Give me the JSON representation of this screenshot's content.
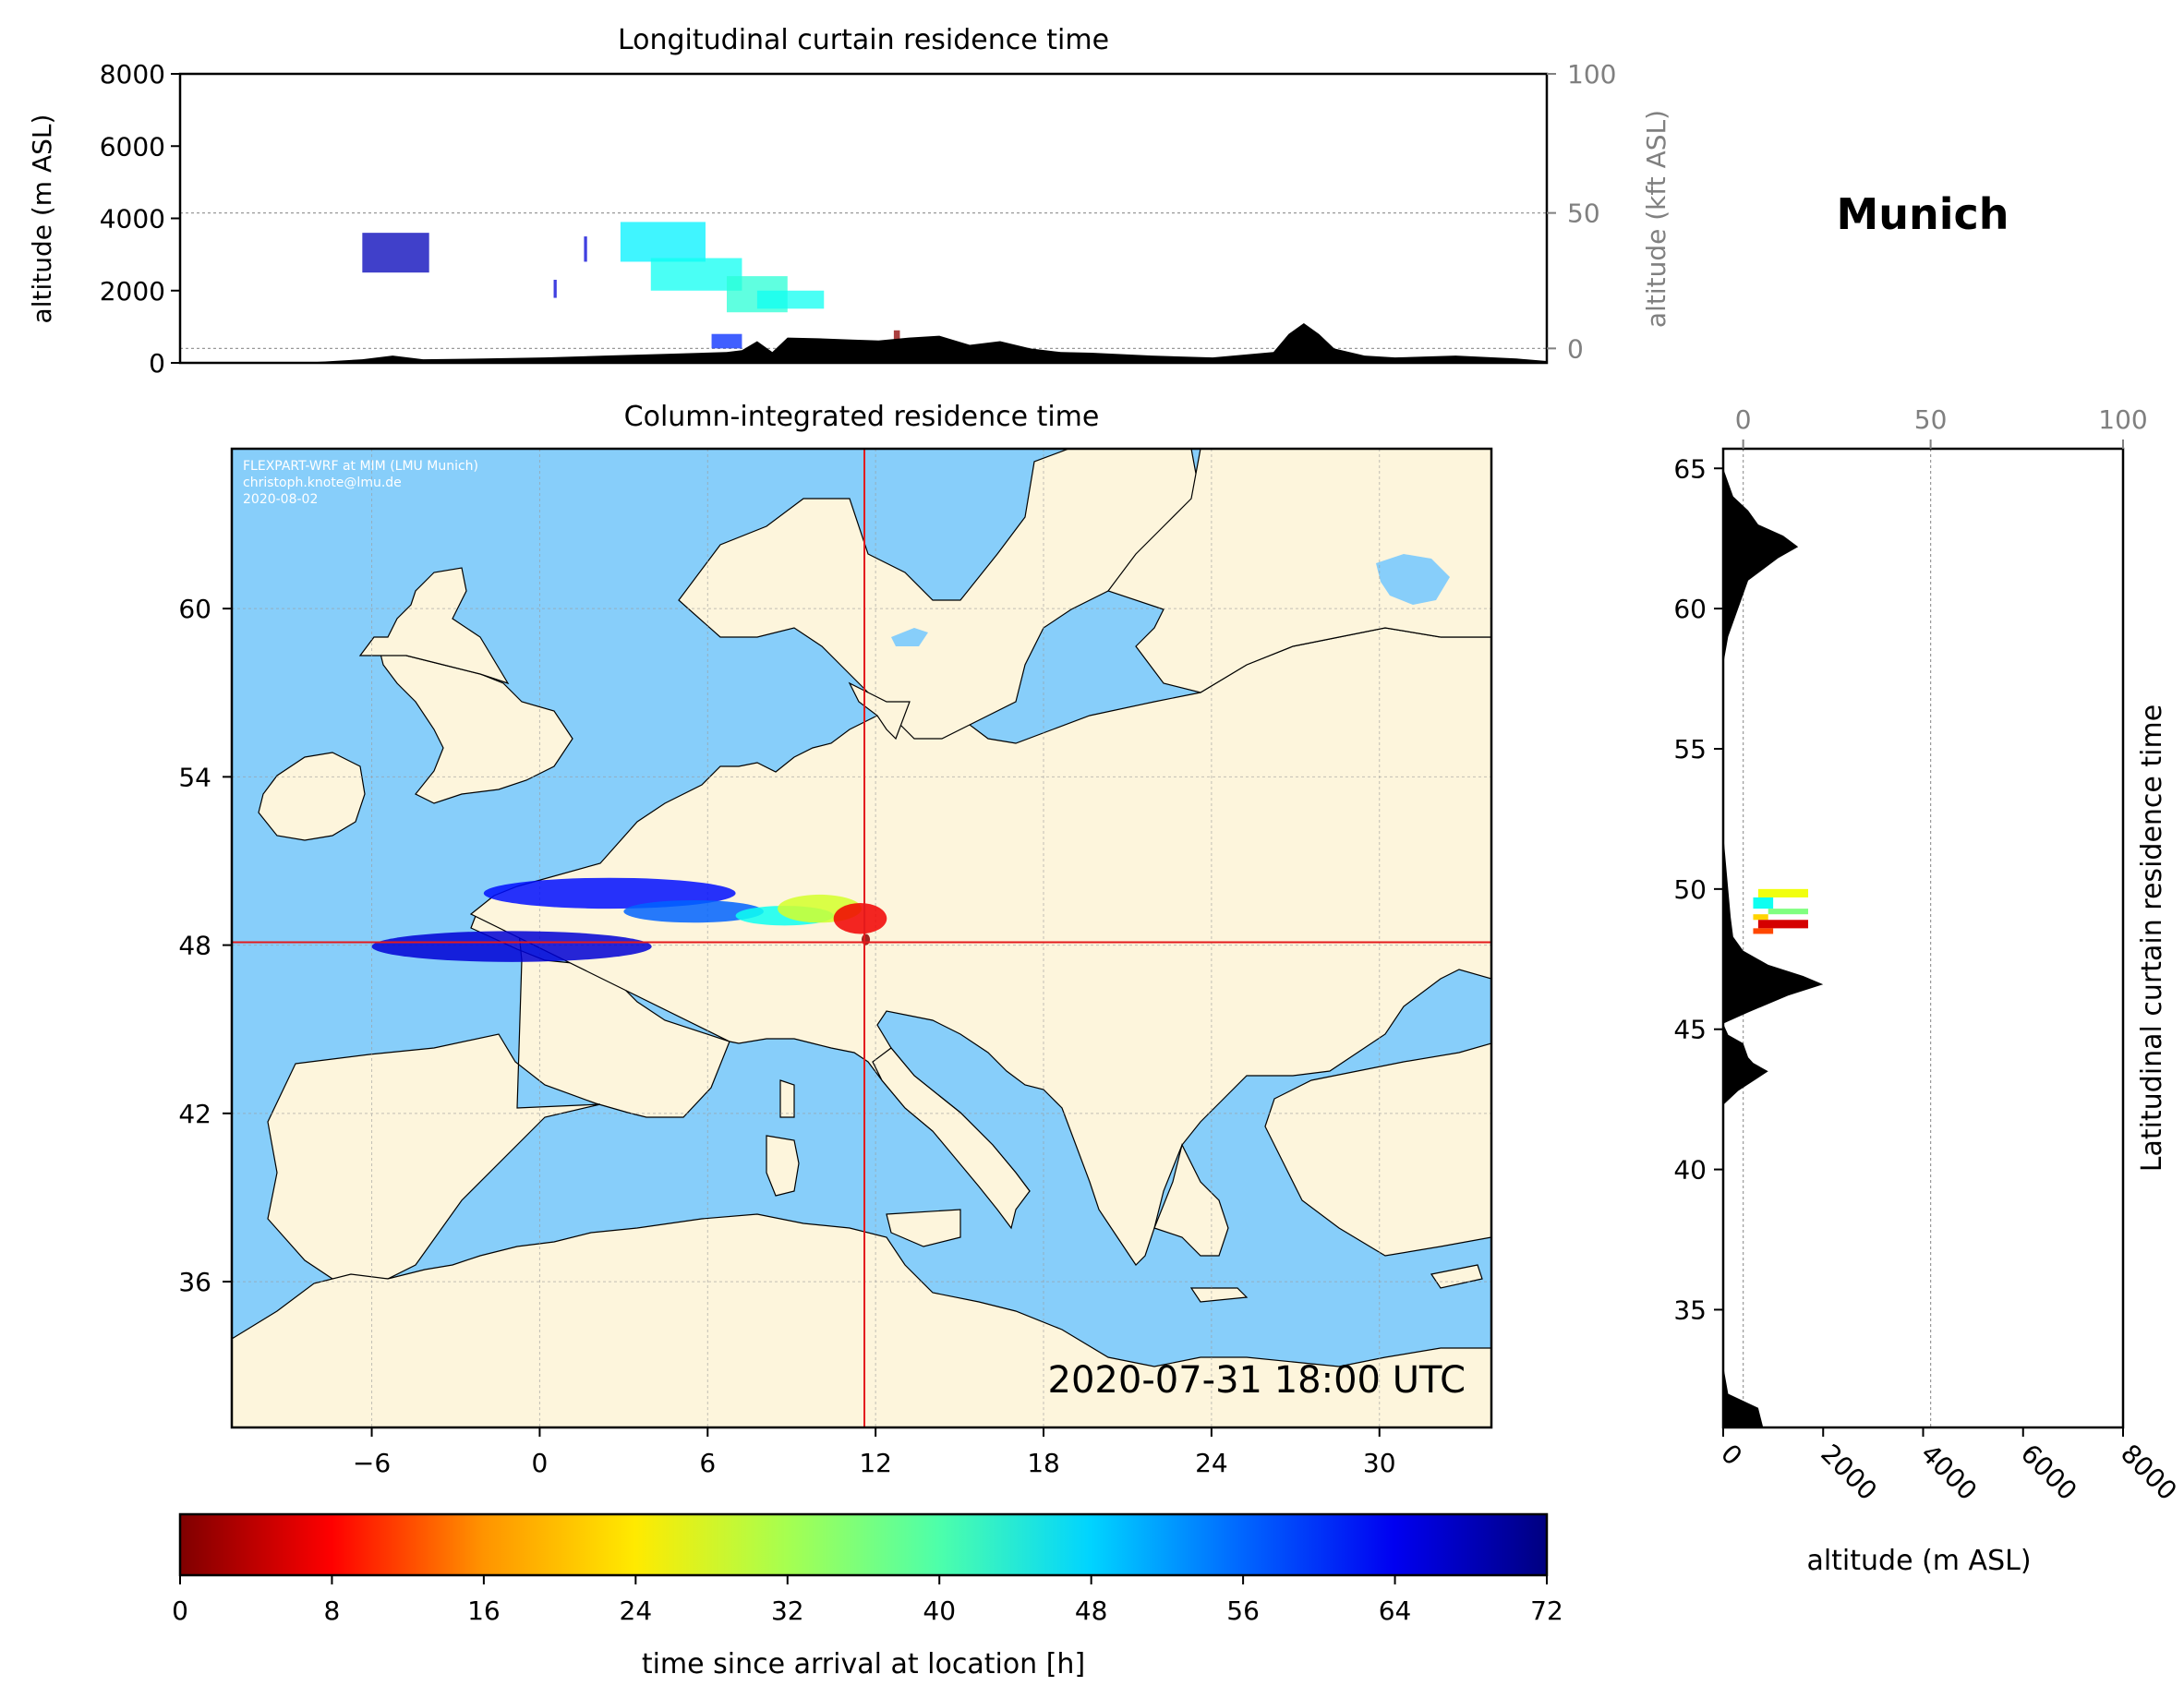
{
  "titles": {
    "top": "Longitudinal curtain residence time",
    "map": "Column-integrated residence time",
    "station": "Munich",
    "right_side": "Latitudinal curtain residence time"
  },
  "credits": [
    "FLEXPART-WRF at MIM (LMU Munich)",
    "christoph.knote@lmu.de",
    "2020-08-02"
  ],
  "timestamp": "2020-07-31 18:00 UTC",
  "colors": {
    "ocean": "#87cefa",
    "land": "#fdf5dc",
    "terrain": "#000000",
    "crosshair": "#e31a1c"
  },
  "chart_data": [
    {
      "type": "area",
      "title": "Longitudinal curtain residence time",
      "xlim": [
        -12,
        33
      ],
      "ylabel": "altitude (m ASL)",
      "ylim": [
        0,
        8000
      ],
      "yticks": [
        "0",
        "2000",
        "4000",
        "6000",
        "8000"
      ],
      "y2label": "altitude (kft ASL)",
      "y2ticks": [
        "0",
        "50",
        "100"
      ],
      "grid_lines_m": [
        400,
        4150,
        8000
      ],
      "terrain": {
        "x": [
          -12,
          -10,
          -8,
          -6,
          -5,
          -4,
          -2,
          0,
          2,
          4,
          6,
          6.5,
          7,
          7.5,
          8,
          9,
          10,
          11,
          12,
          13,
          14,
          15,
          16,
          17,
          18,
          20,
          22,
          24,
          24.5,
          25,
          25.5,
          26,
          27,
          28,
          30,
          32,
          33
        ],
        "y": [
          0,
          0,
          0,
          100,
          200,
          100,
          120,
          150,
          200,
          250,
          300,
          350,
          600,
          300,
          700,
          680,
          650,
          620,
          700,
          750,
          500,
          600,
          400,
          300,
          280,
          200,
          150,
          300,
          800,
          1100,
          800,
          400,
          200,
          150,
          200,
          120,
          50
        ]
      },
      "plume": [
        {
          "x0": -6,
          "x1": -3.8,
          "y0": 2500,
          "y1": 3600,
          "t": 68
        },
        {
          "x0": 0.3,
          "x1": 0.4,
          "y0": 1800,
          "y1": 2300,
          "t": 66
        },
        {
          "x0": 1.3,
          "x1": 1.4,
          "y0": 2800,
          "y1": 3500,
          "t": 66
        },
        {
          "x0": 2.5,
          "x1": 5.3,
          "y0": 2800,
          "y1": 3900,
          "t": 46
        },
        {
          "x0": 3.5,
          "x1": 6.5,
          "y0": 2000,
          "y1": 2900,
          "t": 44
        },
        {
          "x0": 6,
          "x1": 8,
          "y0": 1400,
          "y1": 2400,
          "t": 42
        },
        {
          "x0": 7,
          "x1": 9.2,
          "y0": 1500,
          "y1": 2000,
          "t": 44
        },
        {
          "x0": 5.5,
          "x1": 6.5,
          "y0": 400,
          "y1": 800,
          "t": 60
        },
        {
          "x0": 11.5,
          "x1": 11.7,
          "y0": 650,
          "y1": 900,
          "t": 1
        }
      ]
    },
    {
      "type": "heatmap",
      "title": "Column-integrated residence time",
      "xticks": [
        "−6",
        "0",
        "6",
        "12",
        "18",
        "24",
        "30"
      ],
      "xlim": [
        -11,
        34
      ],
      "yticks": [
        "36",
        "42",
        "48",
        "54",
        "60"
      ],
      "ylim": [
        30.8,
        65.7
      ],
      "marker": {
        "lon": 11.6,
        "lat": 48.1
      },
      "plume": [
        {
          "lon0": -6,
          "lon1": 4,
          "lat0": 47.4,
          "lat1": 48.5,
          "t": 66
        },
        {
          "lon0": -2,
          "lon1": 7,
          "lat0": 49.3,
          "lat1": 50.4,
          "t": 62
        },
        {
          "lon0": 3,
          "lon1": 8,
          "lat0": 48.8,
          "lat1": 49.6,
          "t": 56
        },
        {
          "lon0": 7,
          "lon1": 10.5,
          "lat0": 48.7,
          "lat1": 49.4,
          "t": 44
        },
        {
          "lon0": 8.5,
          "lon1": 11.5,
          "lat0": 48.8,
          "lat1": 49.8,
          "t": 30
        },
        {
          "lon0": 10.5,
          "lon1": 12.4,
          "lat0": 48.4,
          "lat1": 49.5,
          "t": 8
        },
        {
          "lon0": 11.5,
          "lon1": 11.8,
          "lat0": 48.0,
          "lat1": 48.4,
          "t": 1
        }
      ]
    },
    {
      "type": "area",
      "title": "Latitudinal curtain residence time",
      "xlabel": "altitude (m ASL)",
      "xlim": [
        0,
        8000
      ],
      "xticks": [
        "0",
        "2000",
        "4000",
        "6000",
        "8000"
      ],
      "x2ticks": [
        "0",
        "50",
        "100"
      ],
      "ylim": [
        30.8,
        65.7
      ],
      "yticks": [
        "35",
        "40",
        "45",
        "50",
        "55",
        "60",
        "65"
      ],
      "terrain": {
        "lat": [
          30.8,
          31.5,
          32,
          33,
          35,
          38,
          42.3,
          42.8,
          43.5,
          43.8,
          44,
          44.5,
          44.8,
          45.2,
          45.6,
          46.2,
          46.6,
          46.9,
          47.3,
          47.8,
          48.3,
          49,
          50,
          51,
          52,
          53,
          58,
          59,
          60,
          61,
          61.8,
          62.2,
          62.6,
          63,
          63.5,
          64,
          64.5,
          65,
          65.7
        ],
        "alt": [
          800,
          700,
          100,
          0,
          0,
          0,
          0,
          300,
          900,
          600,
          500,
          400,
          100,
          0,
          500,
          1300,
          2000,
          1600,
          900,
          400,
          200,
          150,
          100,
          50,
          0,
          0,
          0,
          100,
          300,
          500,
          1100,
          1500,
          1200,
          700,
          500,
          200,
          100,
          0,
          0
        ]
      },
      "plume": [
        {
          "alt0": 700,
          "alt1": 1700,
          "lat0": 49.7,
          "lat1": 50.0,
          "t": 28
        },
        {
          "alt0": 600,
          "alt1": 1000,
          "lat0": 49.3,
          "lat1": 49.7,
          "t": 44
        },
        {
          "alt0": 900,
          "alt1": 1700,
          "lat0": 49.1,
          "lat1": 49.3,
          "t": 36
        },
        {
          "alt0": 600,
          "alt1": 900,
          "lat0": 48.9,
          "lat1": 49.1,
          "t": 24
        },
        {
          "alt0": 700,
          "alt1": 1700,
          "lat0": 48.6,
          "lat1": 48.9,
          "t": 6
        },
        {
          "alt0": 600,
          "alt1": 1000,
          "lat0": 48.4,
          "lat1": 48.6,
          "t": 14
        }
      ]
    },
    {
      "type": "colorbar",
      "label": "time since arrival at location [h]",
      "range": [
        0,
        72
      ],
      "ticks": [
        "0",
        "8",
        "16",
        "24",
        "32",
        "40",
        "48",
        "56",
        "64",
        "72"
      ],
      "colormap": "jet_r"
    }
  ]
}
